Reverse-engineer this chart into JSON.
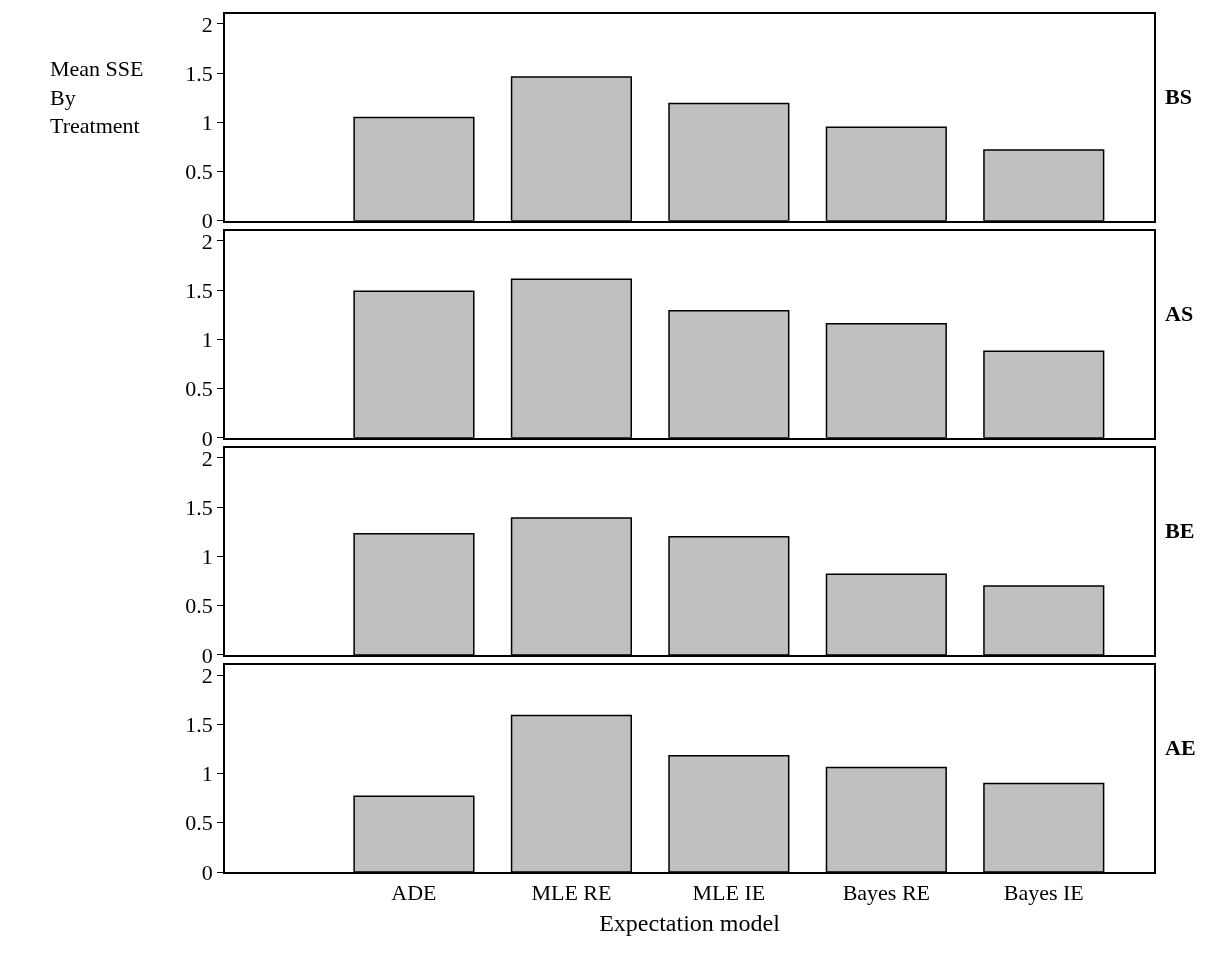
{
  "chart_data": [
    {
      "type": "bar",
      "ylabel": "Mean SSE By Treatment",
      "annotations": [
        "BS"
      ],
      "categories": [
        "ADE",
        "MLE RE",
        "MLE IE",
        "Bayes RE",
        "Bayes IE"
      ],
      "values": [
        1.05,
        1.46,
        1.19,
        0.95,
        0.72
      ],
      "color": "#c0c0c0",
      "ylim": [
        0,
        2.1
      ],
      "yticks": [
        0,
        0.5,
        1,
        1.5,
        2
      ],
      "tick_labels": "y"
    },
    {
      "type": "bar",
      "annotations": [
        "AS"
      ],
      "categories": [
        "ADE",
        "MLE RE",
        "MLE IE",
        "Bayes RE",
        "Bayes IE"
      ],
      "values": [
        1.49,
        1.61,
        1.29,
        1.16,
        0.88
      ],
      "color": "#c0c0c0",
      "ylim": [
        0,
        2.1
      ],
      "yticks": [
        0,
        0.5,
        1,
        1.5,
        2
      ],
      "tick_labels": "y"
    },
    {
      "type": "bar",
      "annotations": [
        "BE"
      ],
      "categories": [
        "ADE",
        "MLE RE",
        "MLE IE",
        "Bayes RE",
        "Bayes IE"
      ],
      "values": [
        1.23,
        1.39,
        1.2,
        0.82,
        0.7
      ],
      "color": "#c0c0c0",
      "ylim": [
        0,
        2.1
      ],
      "yticks": [
        0,
        0.5,
        1,
        1.5,
        2
      ],
      "tick_labels": "y"
    },
    {
      "type": "bar",
      "xlabel": "Expectation model",
      "annotations": [
        "AE"
      ],
      "categories": [
        "ADE",
        "MLE RE",
        "MLE IE",
        "Bayes RE",
        "Bayes IE"
      ],
      "values": [
        0.77,
        1.59,
        1.18,
        1.06,
        0.9
      ],
      "color": "#c0c0c0",
      "ylim": [
        0,
        2.1
      ],
      "yticks": [
        0,
        0.5,
        1,
        1.5,
        2
      ]
    }
  ]
}
